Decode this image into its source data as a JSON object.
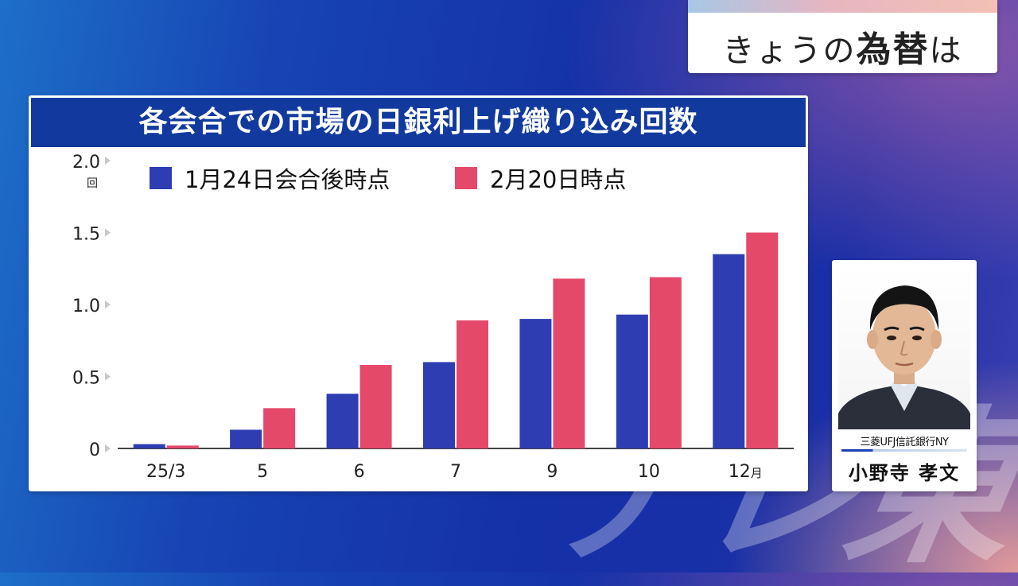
{
  "topic": {
    "prefix": "きょうの",
    "bold": "為替",
    "suffix": "は"
  },
  "watermark": "テレ東",
  "chart_data": {
    "type": "bar",
    "title": "各会合での市場の日銀利上げ織り込み回数",
    "categories": [
      "25/3",
      "5",
      "6",
      "7",
      "9",
      "10",
      "12"
    ],
    "x_unit": "月",
    "y_unit": "回",
    "yticks": [
      "0",
      "0.5",
      "1.0",
      "1.5",
      "2.0"
    ],
    "ylim": [
      0,
      2.0
    ],
    "series": [
      {
        "name": "1月24日会合後時点",
        "color": "#2e3db2",
        "values": [
          0.03,
          0.13,
          0.38,
          0.6,
          0.9,
          0.93,
          1.35
        ]
      },
      {
        "name": "2月20日時点",
        "color": "#e5496a",
        "values": [
          0.02,
          0.28,
          0.58,
          0.89,
          1.18,
          1.19,
          1.5
        ]
      }
    ],
    "legend_position": "top"
  },
  "person": {
    "affiliation": "三菱UFJ信託銀行NY",
    "name": "小野寺 孝文"
  }
}
